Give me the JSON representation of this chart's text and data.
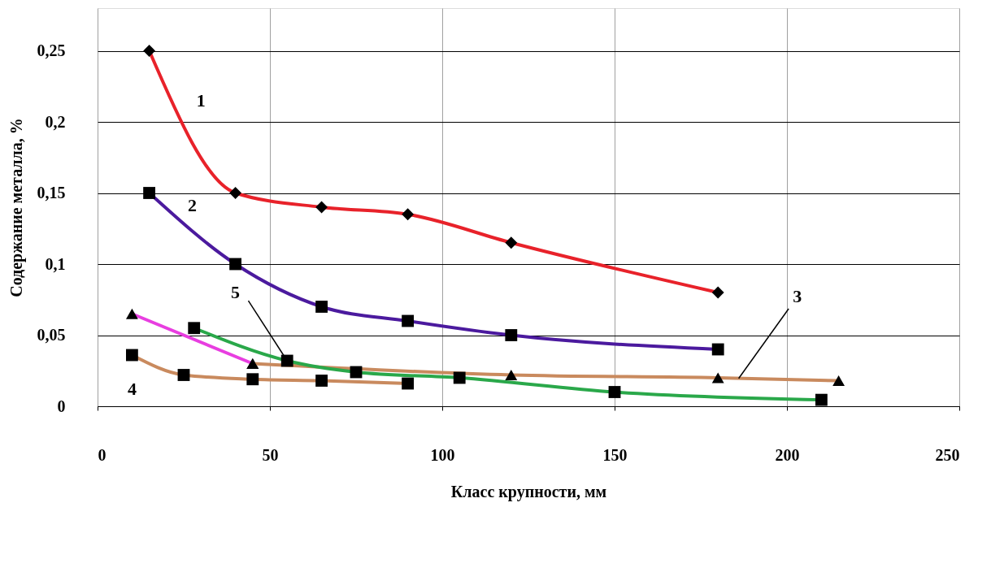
{
  "chart_data": {
    "type": "line",
    "xlabel": "Класс крупности, мм",
    "ylabel": "Содержание  металла,  %",
    "xlim": [
      0,
      250
    ],
    "xticks": [
      0,
      50,
      100,
      150,
      200,
      250
    ],
    "ylim": [
      0,
      0.28
    ],
    "yticks": [
      {
        "value": 0,
        "label": "0"
      },
      {
        "value": 0.05,
        "label": "0,05"
      },
      {
        "value": 0.1,
        "label": "0,1"
      },
      {
        "value": 0.15,
        "label": "0,15"
      },
      {
        "value": 0.2,
        "label": "0,2"
      },
      {
        "value": 0.25,
        "label": "0,25"
      }
    ],
    "grid": true,
    "line_style": "solid",
    "series": [
      {
        "color": "#e8222a",
        "marker": "diamond",
        "x": [
          15,
          40,
          65,
          90,
          120,
          180
        ],
        "values": [
          0.25,
          0.15,
          0.14,
          0.135,
          0.115,
          0.08
        ]
      },
      {
        "color": "#4b1a9e",
        "marker": "square",
        "x": [
          15,
          40,
          65,
          90,
          120,
          180
        ],
        "values": [
          0.15,
          0.1,
          0.07,
          0.06,
          0.05,
          0.04
        ]
      },
      {
        "color": "#e83ee0",
        "marker": "triangle",
        "x": [
          10,
          45
        ],
        "values": [
          0.065,
          0.03
        ]
      },
      {
        "color": "#c98a5e",
        "marker": "triangle",
        "x": [
          45,
          120,
          180,
          215
        ],
        "values": [
          0.03,
          0.022,
          0.02,
          0.018
        ]
      },
      {
        "color": "#c98a5e",
        "marker": "square",
        "x": [
          10,
          25,
          45,
          65,
          90
        ],
        "values": [
          0.036,
          0.022,
          0.019,
          0.018,
          0.016
        ]
      },
      {
        "color": "#2aa84a",
        "marker": "square",
        "x": [
          28,
          55,
          75,
          105,
          150,
          210
        ],
        "values": [
          0.055,
          0.032,
          0.024,
          0.02,
          0.01,
          0.0045
        ]
      }
    ],
    "annotations": [
      "1",
      "2",
      {
        "text": "5",
        "x": 55,
        "y": 0.032
      },
      {
        "text": "3",
        "x": 186,
        "y": 0.0196
      },
      "4"
    ]
  }
}
